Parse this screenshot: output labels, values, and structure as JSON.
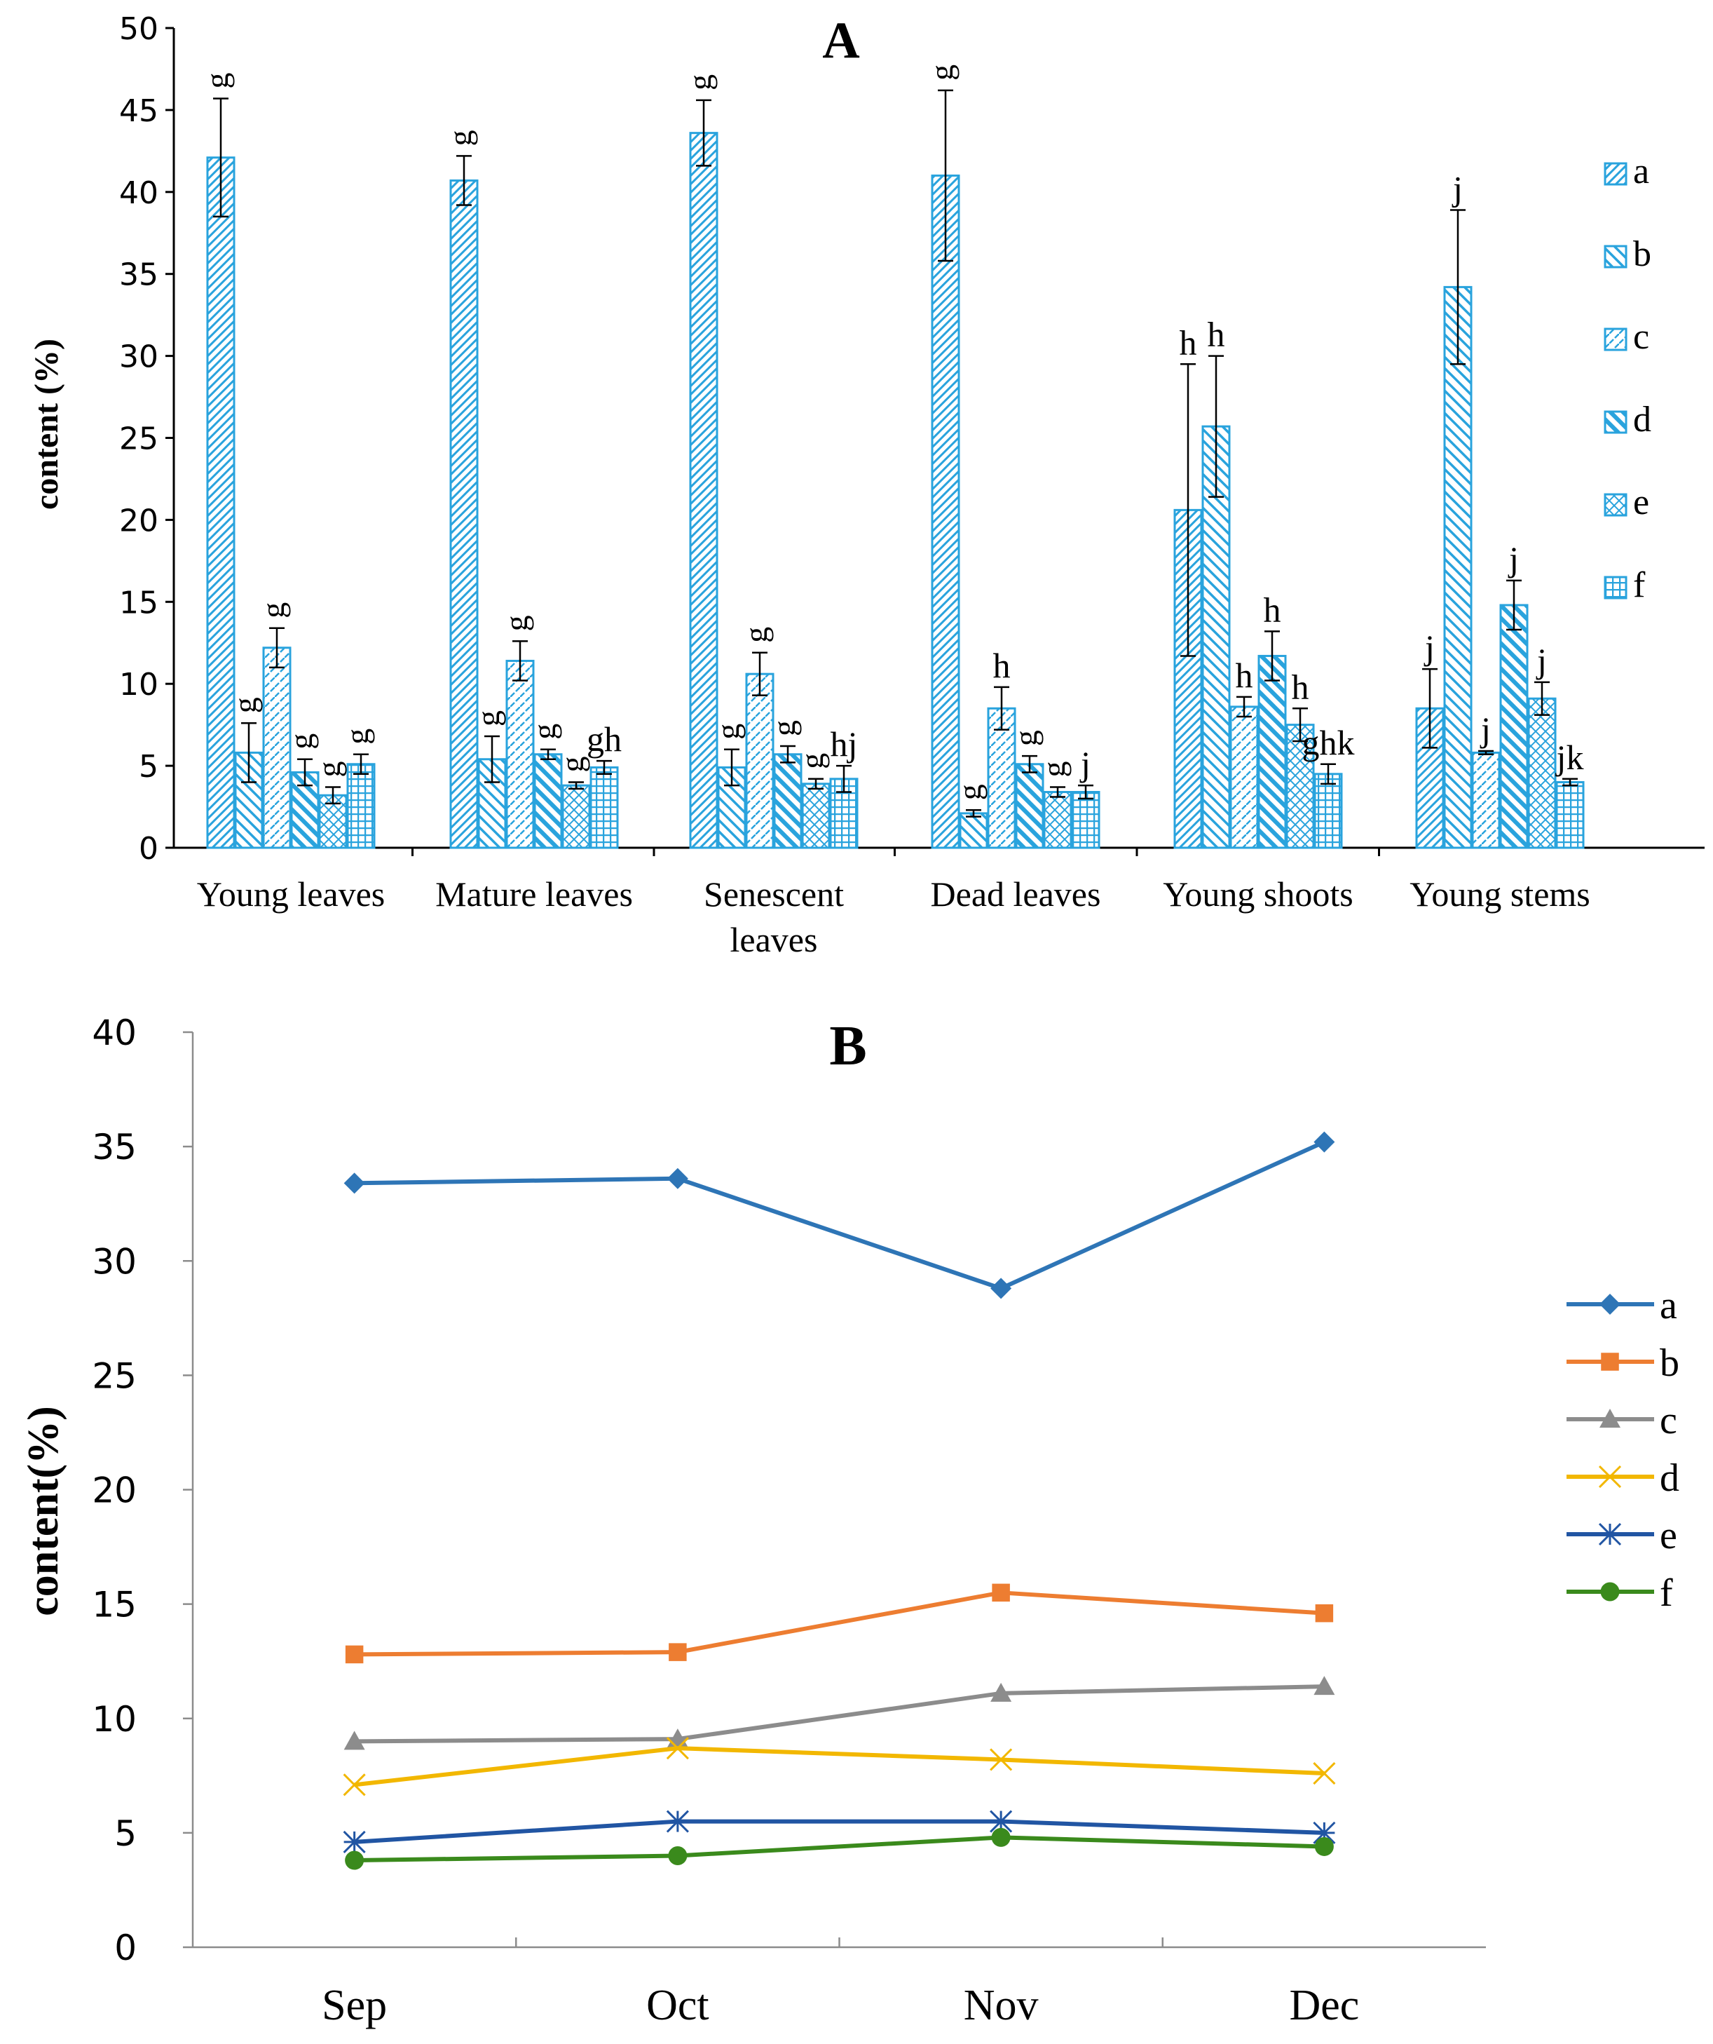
{
  "chart_data": [
    {
      "type": "bar",
      "title": "A",
      "ylabel": "content (%)",
      "xlabel": "",
      "ylim": [
        0,
        50
      ],
      "yticks": [
        0,
        5,
        10,
        15,
        20,
        25,
        30,
        35,
        40,
        45,
        50
      ],
      "grid": false,
      "legend_position": "right",
      "categories": [
        "Young leaves",
        "Mature leaves",
        "Senescent leaves",
        "Dead leaves",
        "Young shoots",
        "Young stems"
      ],
      "category_label_lines": [
        [
          "Young leaves"
        ],
        [
          "Mature leaves"
        ],
        [
          "Senescent",
          "leaves"
        ],
        [
          "Dead leaves"
        ],
        [
          "Young shoots"
        ],
        [
          "Young stems"
        ]
      ],
      "colors": {
        "bar_edge": "#29a3dd",
        "error_bar": "#000000",
        "axis": "#000000"
      },
      "series": [
        {
          "name": "a",
          "pattern": "diag-fine-up",
          "values": [
            42.1,
            40.7,
            43.6,
            41.0,
            20.6,
            8.5
          ],
          "errors": [
            3.6,
            1.5,
            2.0,
            5.2,
            8.9,
            2.4
          ],
          "letters": [
            "g",
            "g",
            "g",
            "g",
            "h",
            "j"
          ]
        },
        {
          "name": "b",
          "pattern": "diag-wide-down",
          "values": [
            5.8,
            5.4,
            4.9,
            2.1,
            25.7,
            34.2
          ],
          "errors": [
            1.8,
            1.4,
            1.1,
            0.2,
            4.3,
            4.7
          ],
          "letters": [
            "g",
            "g",
            "g",
            "g",
            "h",
            "j"
          ]
        },
        {
          "name": "c",
          "pattern": "dashed-diag",
          "values": [
            12.2,
            11.4,
            10.6,
            8.5,
            8.6,
            5.8
          ],
          "errors": [
            1.2,
            1.2,
            1.3,
            1.3,
            0.6,
            0.1
          ],
          "letters": [
            "g",
            "g",
            "g",
            "h",
            "h",
            "j"
          ]
        },
        {
          "name": "d",
          "pattern": "diag-thick-down",
          "values": [
            4.6,
            5.7,
            5.7,
            5.1,
            11.7,
            14.8
          ],
          "errors": [
            0.8,
            0.3,
            0.5,
            0.5,
            1.5,
            1.5
          ],
          "letters": [
            "g",
            "g",
            "g",
            "g",
            "h",
            "j"
          ]
        },
        {
          "name": "e",
          "pattern": "diamond-cross",
          "values": [
            3.2,
            3.8,
            3.9,
            3.4,
            7.5,
            9.1
          ],
          "errors": [
            0.5,
            0.2,
            0.3,
            0.3,
            1.0,
            1.0
          ],
          "letters": [
            "g",
            "g",
            "g",
            "g",
            "h",
            "j"
          ]
        },
        {
          "name": "f",
          "pattern": "grid",
          "values": [
            5.1,
            4.9,
            4.2,
            3.4,
            4.5,
            4.0
          ],
          "errors": [
            0.6,
            0.4,
            0.8,
            0.4,
            0.6,
            0.2
          ],
          "letters": [
            "g",
            "gh",
            "hj",
            "j",
            "ghk",
            "jk"
          ]
        }
      ]
    },
    {
      "type": "line",
      "title": "B",
      "ylabel": "content(%)",
      "xlabel": "",
      "ylim": [
        0,
        40
      ],
      "yticks": [
        0,
        5,
        10,
        15,
        20,
        25,
        30,
        35,
        40
      ],
      "grid": false,
      "legend_position": "right",
      "categories": [
        "Sep",
        "Oct",
        "Nov",
        "Dec"
      ],
      "series": [
        {
          "name": "a",
          "color": "#2e75b6",
          "marker": "diamond",
          "values": [
            33.4,
            33.6,
            28.8,
            35.2
          ]
        },
        {
          "name": "b",
          "color": "#ed7d31",
          "marker": "square",
          "values": [
            12.8,
            12.9,
            15.5,
            14.6
          ]
        },
        {
          "name": "c",
          "color": "#8c8c8c",
          "marker": "triangle",
          "values": [
            9.0,
            9.1,
            11.1,
            11.4
          ]
        },
        {
          "name": "d",
          "color": "#f2b700",
          "marker": "x",
          "values": [
            7.1,
            8.7,
            8.2,
            7.6
          ]
        },
        {
          "name": "e",
          "color": "#2155a3",
          "marker": "asterisk",
          "values": [
            4.6,
            5.5,
            5.5,
            5.0
          ]
        },
        {
          "name": "f",
          "color": "#3a8a1c",
          "marker": "circle",
          "values": [
            3.8,
            4.0,
            4.8,
            4.4
          ]
        }
      ]
    }
  ]
}
